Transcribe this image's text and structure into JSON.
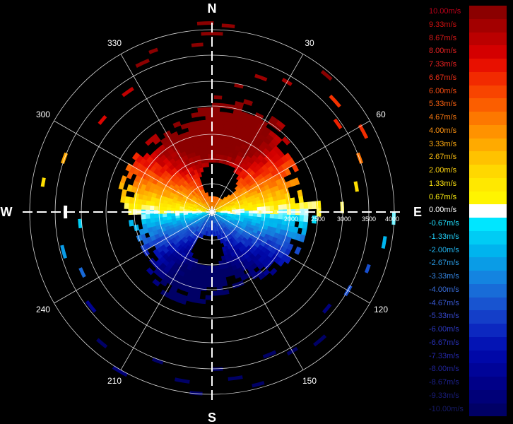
{
  "compass": {
    "north": "N",
    "east": "E",
    "south": "S",
    "west": "W"
  },
  "azimuth_labels": [
    {
      "deg": 30,
      "text": "30"
    },
    {
      "deg": 60,
      "text": "60"
    },
    {
      "deg": 120,
      "text": "120"
    },
    {
      "deg": 150,
      "text": "150"
    },
    {
      "deg": 210,
      "text": "210"
    },
    {
      "deg": 240,
      "text": "240"
    },
    {
      "deg": 300,
      "text": "300"
    },
    {
      "deg": 330,
      "text": "330"
    }
  ],
  "range_labels": [
    "2000",
    "2500",
    "3000",
    "3500",
    "4000"
  ],
  "legend": [
    {
      "label": "10.00m/s",
      "color": "#8b0000",
      "label_color": "#c0001a"
    },
    {
      "label": "9.33m/s",
      "color": "#a30000",
      "label_color": "#cc1010"
    },
    {
      "label": "8.67m/s",
      "color": "#bb0000",
      "label_color": "#d81818"
    },
    {
      "label": "8.00m/s",
      "color": "#d40000",
      "label_color": "#e02020"
    },
    {
      "label": "7.33m/s",
      "color": "#e81000",
      "label_color": "#e82020"
    },
    {
      "label": "6.67m/s",
      "color": "#f22a00",
      "label_color": "#f03018"
    },
    {
      "label": "6.00m/s",
      "color": "#f84400",
      "label_color": "#f44a10"
    },
    {
      "label": "5.33m/s",
      "color": "#fb5e00",
      "label_color": "#f86010"
    },
    {
      "label": "4.67m/s",
      "color": "#fd7800",
      "label_color": "#fa7810"
    },
    {
      "label": "4.00m/s",
      "color": "#ff9200",
      "label_color": "#fb9010"
    },
    {
      "label": "3.33m/s",
      "color": "#ffaa00",
      "label_color": "#fca810"
    },
    {
      "label": "2.67m/s",
      "color": "#ffc200",
      "label_color": "#fdbf10"
    },
    {
      "label": "2.00m/s",
      "color": "#ffd800",
      "label_color": "#fed410"
    },
    {
      "label": "1.33m/s",
      "color": "#ffe800",
      "label_color": "#fee410"
    },
    {
      "label": "0.67m/s",
      "color": "#fff400",
      "label_color": "#fff010"
    },
    {
      "label": "0.00m/s",
      "color": "#ffffff",
      "label_color": "#ffffff"
    },
    {
      "label": "-0.67m/s",
      "color": "#00e6ff",
      "label_color": "#20e0ff"
    },
    {
      "label": "-1.33m/s",
      "color": "#00ccf4",
      "label_color": "#20ccf4"
    },
    {
      "label": "-2.00m/s",
      "color": "#00b4ee",
      "label_color": "#20b4ee"
    },
    {
      "label": "-2.67m/s",
      "color": "#0a9ce6",
      "label_color": "#2a9ce6"
    },
    {
      "label": "-3.33m/s",
      "color": "#1484e0",
      "label_color": "#3484e0"
    },
    {
      "label": "-4.00m/s",
      "color": "#186cd8",
      "label_color": "#386cd8"
    },
    {
      "label": "-4.67m/s",
      "color": "#1854d0",
      "label_color": "#3858d0"
    },
    {
      "label": "-5.33m/s",
      "color": "#143ec8",
      "label_color": "#3446c8"
    },
    {
      "label": "-6.00m/s",
      "color": "#0c28c0",
      "label_color": "#2c38c0"
    },
    {
      "label": "-6.67m/s",
      "color": "#0414b4",
      "label_color": "#2830b4"
    },
    {
      "label": "-7.33m/s",
      "color": "#0008a8",
      "label_color": "#2428a8"
    },
    {
      "label": "-8.00m/s",
      "color": "#000498",
      "label_color": "#202498"
    },
    {
      "label": "-8.67m/s",
      "color": "#000088",
      "label_color": "#1c2088"
    },
    {
      "label": "-9.33m/s",
      "color": "#000078",
      "label_color": "#181c78"
    },
    {
      "label": "-10.00m/s",
      "color": "#000066",
      "label_color": "#161a66"
    }
  ]
}
